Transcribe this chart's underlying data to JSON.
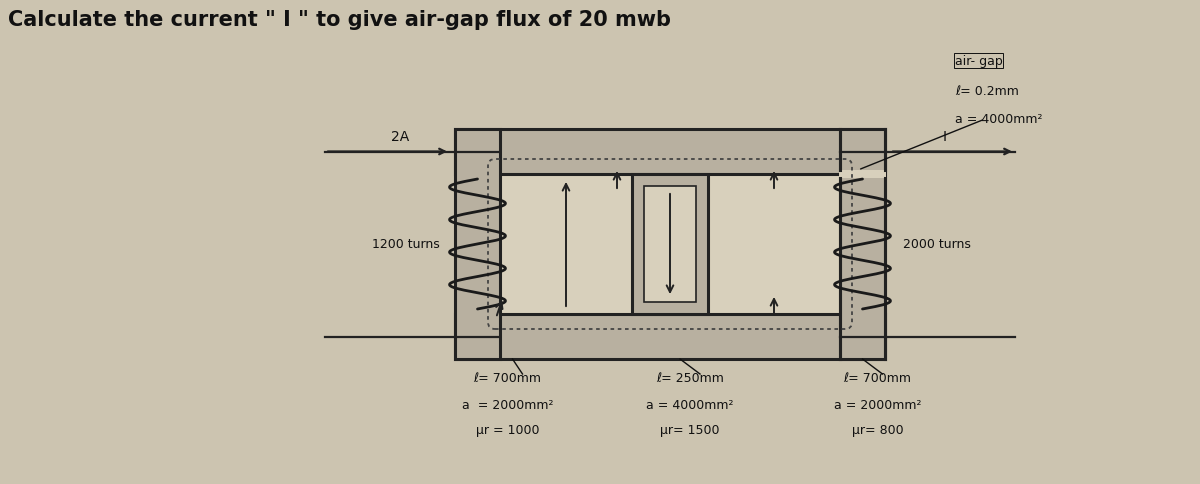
{
  "title": "Calculate the current \" I \" to give air-gap flux of 20 mwb",
  "bg_color": "#ccc4b0",
  "core_fill": "#b8b0a0",
  "core_edge": "#222222",
  "window_fill": "#d8d0bc",
  "dashed_color": "#444444",
  "text_color": "#111111",
  "title_fontsize": 15,
  "label_fontsize": 9,
  "left_label_2A": "2A",
  "left_label_turns": "1200 turns",
  "right_label_I": "I",
  "right_label_turns": "2000 turns",
  "airgap_label": "air- gap",
  "airgap_l": "ℓ= 0.2mm",
  "airgap_a": "a = 4000mm²",
  "bottom_left_l": "ℓ= 700mm",
  "bottom_left_a": "a  = 2000mm²",
  "bottom_left_mu": "μr = 1000",
  "bottom_center_l": "ℓ= 250mm",
  "bottom_center_a": "a = 4000mm²",
  "bottom_center_mu": "μr= 1500",
  "bottom_right_l": "ℓ= 700mm",
  "bottom_right_a": "a = 2000mm²",
  "bottom_right_mu": "μr= 800"
}
